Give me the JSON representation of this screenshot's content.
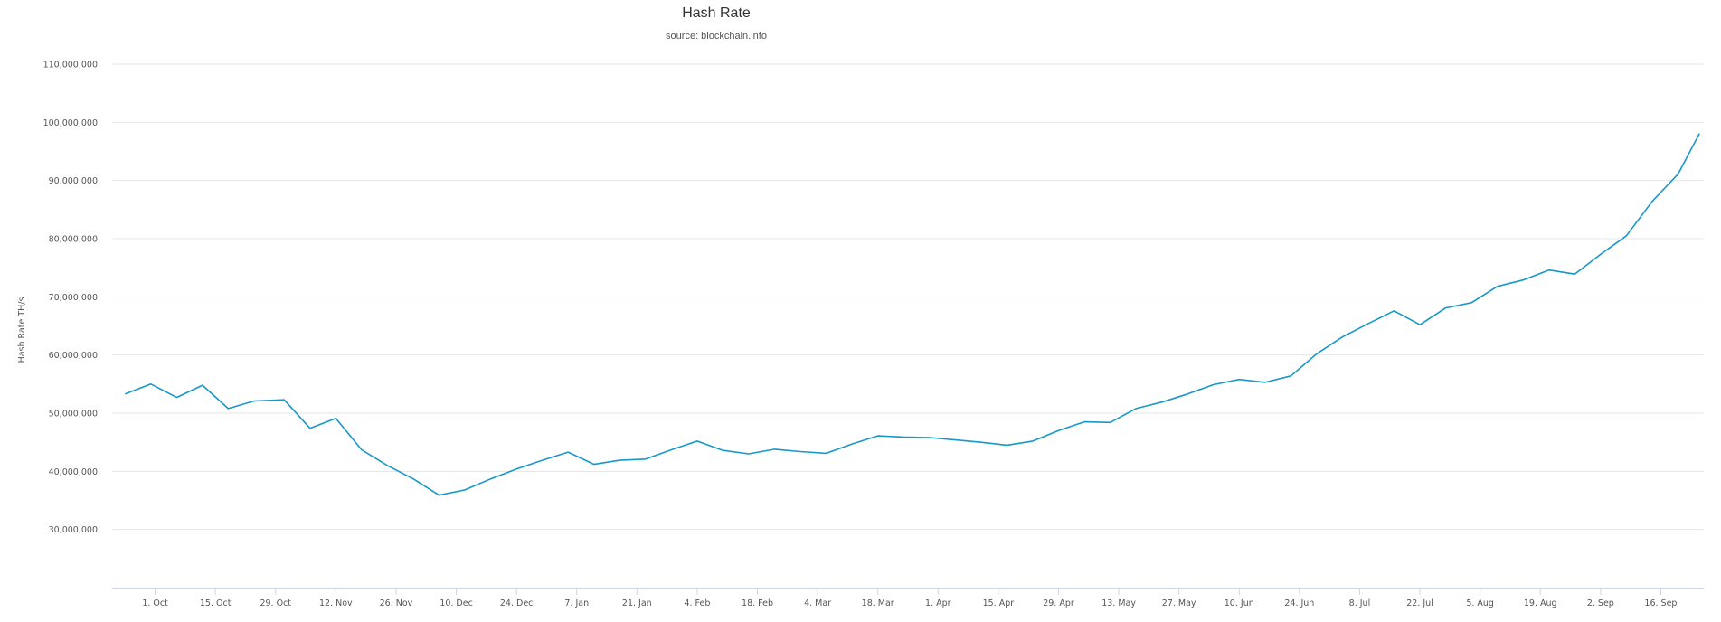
{
  "chart_data": {
    "type": "line",
    "title": "Hash Rate",
    "subtitle": "source: blockchain.info",
    "xlabel": "",
    "ylabel": "Hash Rate TH/s",
    "ylim": [
      20000000,
      110000000
    ],
    "yticks": [
      30000000,
      40000000,
      50000000,
      60000000,
      70000000,
      80000000,
      90000000,
      100000000,
      110000000
    ],
    "ytick_labels": [
      "30,000,000",
      "40,000,000",
      "50,000,000",
      "60,000,000",
      "70,000,000",
      "80,000,000",
      "90,000,000",
      "100,000,000",
      "110,000,000"
    ],
    "xlim": [
      "2017-09-21",
      "2018-09-26"
    ],
    "xticks": [
      "2017-10-01",
      "2017-10-15",
      "2017-10-29",
      "2017-11-12",
      "2017-11-26",
      "2017-12-10",
      "2017-12-24",
      "2018-01-07",
      "2018-01-21",
      "2018-02-04",
      "2018-02-18",
      "2018-03-04",
      "2018-03-18",
      "2018-04-01",
      "2018-04-15",
      "2018-04-29",
      "2018-05-13",
      "2018-05-27",
      "2018-06-10",
      "2018-06-24",
      "2018-07-08",
      "2018-07-22",
      "2018-08-05",
      "2018-08-19",
      "2018-09-02",
      "2018-09-16"
    ],
    "xtick_labels": [
      "1. Oct",
      "15. Oct",
      "29. Oct",
      "12. Nov",
      "26. Nov",
      "10. Dec",
      "24. Dec",
      "7. Jan",
      "21. Jan",
      "4. Feb",
      "18. Feb",
      "4. Mar",
      "18. Mar",
      "1. Apr",
      "15. Apr",
      "29. Apr",
      "13. May",
      "27. May",
      "10. Jun",
      "24. Jun",
      "8. Jul",
      "22. Jul",
      "5. Aug",
      "19. Aug",
      "2. Sep",
      "16. Sep"
    ],
    "grid": true,
    "legend": "none",
    "color": "#1897c9",
    "series": [
      {
        "x": [
          "2017-09-24",
          "2017-09-30",
          "2017-10-06",
          "2017-10-12",
          "2017-10-18",
          "2017-10-24",
          "2017-10-31",
          "2017-11-06",
          "2017-11-12",
          "2017-11-18",
          "2017-11-24",
          "2017-11-30",
          "2017-12-06",
          "2017-12-12",
          "2017-12-18",
          "2017-12-24",
          "2017-12-30",
          "2018-01-05",
          "2018-01-11",
          "2018-01-17",
          "2018-01-23",
          "2018-01-29",
          "2018-02-04",
          "2018-02-10",
          "2018-02-16",
          "2018-02-22",
          "2018-02-28",
          "2018-03-06",
          "2018-03-12",
          "2018-03-18",
          "2018-03-24",
          "2018-03-30",
          "2018-04-05",
          "2018-04-11",
          "2018-04-17",
          "2018-04-23",
          "2018-04-29",
          "2018-05-05",
          "2018-05-11",
          "2018-05-17",
          "2018-05-23",
          "2018-05-29",
          "2018-06-04",
          "2018-06-10",
          "2018-06-16",
          "2018-06-22",
          "2018-06-28",
          "2018-07-04",
          "2018-07-10",
          "2018-07-16",
          "2018-07-22",
          "2018-07-28",
          "2018-08-03",
          "2018-08-09",
          "2018-08-15",
          "2018-08-21",
          "2018-08-27",
          "2018-09-02",
          "2018-09-08",
          "2018-09-14",
          "2018-09-20",
          "2018-09-25"
        ],
        "values": [
          53300000,
          55000000,
          52700000,
          54800000,
          50800000,
          52100000,
          52300000,
          47400000,
          49100000,
          43700000,
          41000000,
          38700000,
          35900000,
          36800000,
          38700000,
          40400000,
          41900000,
          43300000,
          41200000,
          41900000,
          42100000,
          43700000,
          45200000,
          43600000,
          43000000,
          43800000,
          43400000,
          43100000,
          44700000,
          46100000,
          45900000,
          45800000,
          45400000,
          45000000,
          44500000,
          45200000,
          47000000,
          48500000,
          48400000,
          50800000,
          51900000,
          53300000,
          54900000,
          55800000,
          55300000,
          56400000,
          60200000,
          63100000,
          65400000,
          67600000,
          65200000,
          68100000,
          69000000,
          71800000,
          72900000,
          74600000,
          73900000,
          77300000,
          80500000,
          86400000,
          91100000,
          98100000
        ]
      }
    ]
  }
}
